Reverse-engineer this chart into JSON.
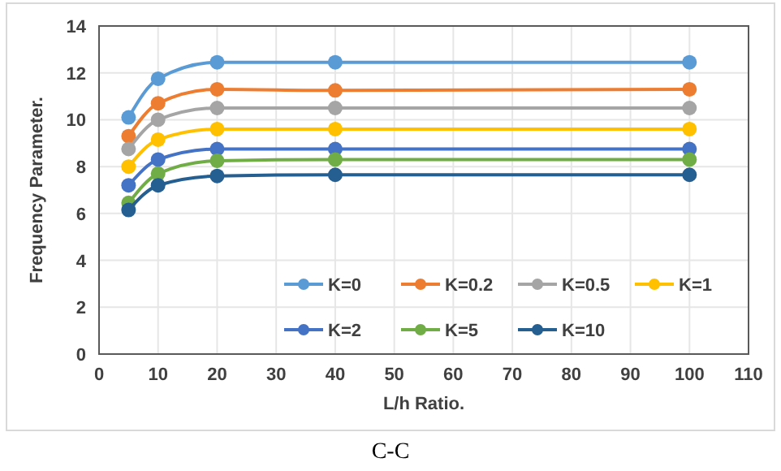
{
  "chart_data": {
    "type": "line",
    "xlabel": "L/h Ratio.",
    "ylabel": "Frequency Parameter.",
    "x": [
      5,
      10,
      20,
      40,
      100
    ],
    "series": [
      {
        "name": "K=0",
        "color": "#5b9bd5",
        "values": [
          10.1,
          11.75,
          12.45,
          12.45,
          12.45
        ]
      },
      {
        "name": "K=0.2",
        "color": "#ed7d31",
        "values": [
          9.3,
          10.7,
          11.3,
          11.25,
          11.3
        ]
      },
      {
        "name": "K=0.5",
        "color": "#a5a5a5",
        "values": [
          8.75,
          10.0,
          10.5,
          10.5,
          10.5
        ]
      },
      {
        "name": "K=1",
        "color": "#ffc000",
        "values": [
          8.0,
          9.15,
          9.6,
          9.6,
          9.6
        ]
      },
      {
        "name": "K=2",
        "color": "#4472c4",
        "values": [
          7.2,
          8.3,
          8.75,
          8.75,
          8.75
        ]
      },
      {
        "name": "K=5",
        "color": "#70ad47",
        "values": [
          6.45,
          7.7,
          8.25,
          8.3,
          8.3
        ]
      },
      {
        "name": "K=10",
        "color": "#255e91",
        "values": [
          6.15,
          7.2,
          7.6,
          7.65,
          7.65
        ]
      }
    ],
    "xlim": [
      0,
      110
    ],
    "xticks": [
      0,
      10,
      20,
      30,
      40,
      50,
      60,
      70,
      80,
      90,
      100,
      110
    ],
    "ylim": [
      0,
      14
    ],
    "yticks": [
      0,
      2,
      4,
      6,
      8,
      10,
      12,
      14
    ],
    "grid": true,
    "legend": "bottom right",
    "marker": "circle",
    "line_style": "solid",
    "annotations": [
      "C-C"
    ]
  }
}
